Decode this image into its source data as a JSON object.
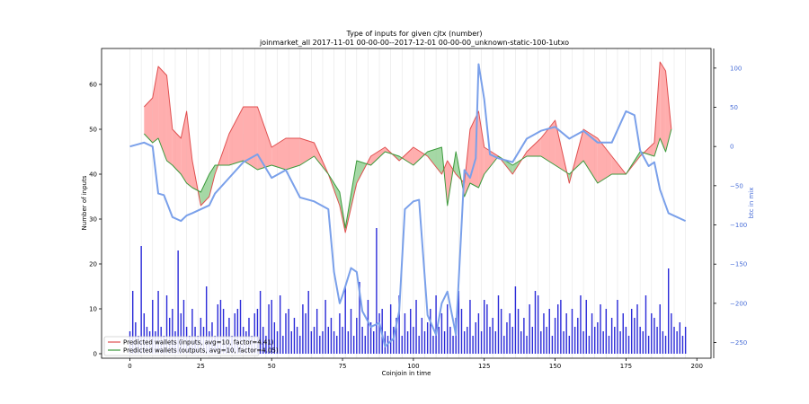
{
  "chart_data": {
    "type": "line",
    "title": "Type of inputs for given cjtx (number)",
    "subtitle": "joinmarket_all 2017-11-01 00-00-00--2017-12-01 00-00-00_unknown-static-100-1utxo",
    "xlabel": "Coinjoin in time",
    "ylabel": "Number of inputs",
    "ylabel_right": "btc in mix",
    "xlim": [
      -10,
      205
    ],
    "ylim": [
      -1,
      68
    ],
    "ylim_right": [
      -270,
      125
    ],
    "xticks": [
      0,
      25,
      50,
      75,
      100,
      125,
      150,
      175,
      200
    ],
    "yticks": [
      0,
      10,
      20,
      30,
      40,
      50,
      60
    ],
    "yticks_right": [
      100,
      50,
      0,
      -50,
      -100,
      -150,
      -200,
      -250
    ],
    "legend_position": "lower-left",
    "series": [
      {
        "name": "Predicted wallets (inputs, avg=10, factor=4.41)",
        "color": "#e05050",
        "x": [
          5,
          8,
          10,
          13,
          15,
          18,
          20,
          22,
          25,
          28,
          30,
          35,
          40,
          45,
          50,
          55,
          60,
          65,
          70,
          74,
          76,
          80,
          85,
          90,
          95,
          100,
          105,
          110,
          112,
          115,
          118,
          120,
          123,
          125,
          130,
          135,
          140,
          145,
          150,
          155,
          160,
          165,
          170,
          175,
          180,
          185,
          187,
          189,
          191
        ],
        "values": [
          55,
          57,
          64,
          62,
          50,
          48,
          54,
          43,
          33,
          35,
          40,
          49,
          55,
          55,
          46,
          48,
          48,
          47,
          40,
          33,
          27,
          38,
          44,
          46,
          43,
          46,
          44,
          40,
          43,
          40,
          38,
          50,
          54,
          46,
          44,
          40,
          45,
          48,
          52,
          38,
          50,
          48,
          44,
          40,
          44,
          47,
          65,
          63,
          50
        ]
      },
      {
        "name": "Predicted wallets (outputs, avg=10, factor=4.05)",
        "color": "#3c9a3c",
        "x": [
          5,
          8,
          10,
          13,
          15,
          18,
          20,
          22,
          25,
          28,
          30,
          35,
          40,
          45,
          50,
          55,
          60,
          65,
          70,
          74,
          76,
          80,
          85,
          90,
          95,
          100,
          105,
          110,
          112,
          115,
          118,
          120,
          123,
          125,
          130,
          135,
          140,
          145,
          150,
          155,
          160,
          165,
          170,
          175,
          180,
          185,
          187,
          189,
          191
        ],
        "values": [
          49,
          47,
          48,
          43,
          42,
          40,
          38,
          37,
          36,
          40,
          42,
          42,
          43,
          41,
          42,
          41,
          42,
          44,
          40,
          36,
          28,
          43,
          42,
          45,
          44,
          42,
          45,
          46,
          33,
          45,
          35,
          38,
          37,
          40,
          44,
          42,
          44,
          44,
          42,
          40,
          43,
          38,
          40,
          40,
          45,
          44,
          48,
          45,
          50
        ]
      },
      {
        "name": "btc in mix",
        "color": "#7aa0ea",
        "axis": "right",
        "x": [
          0,
          2,
          5,
          8,
          10,
          12,
          15,
          18,
          20,
          22,
          25,
          28,
          30,
          35,
          40,
          45,
          50,
          55,
          60,
          65,
          70,
          72,
          74,
          75,
          78,
          80,
          82,
          85,
          88,
          90,
          93,
          95,
          97,
          100,
          102,
          105,
          108,
          110,
          112,
          115,
          118,
          120,
          122,
          123,
          125,
          127,
          130,
          135,
          140,
          145,
          150,
          155,
          160,
          165,
          170,
          175,
          178,
          180,
          183,
          185,
          187,
          190,
          193,
          196
        ],
        "values": [
          0,
          2,
          5,
          0,
          -60,
          -62,
          -90,
          -95,
          -88,
          -85,
          -80,
          -75,
          -60,
          -40,
          -20,
          -10,
          -40,
          -30,
          -65,
          -70,
          -80,
          -160,
          -200,
          -190,
          -155,
          -160,
          -210,
          -230,
          -225,
          -255,
          -245,
          -210,
          -80,
          -70,
          -68,
          -215,
          -240,
          -200,
          -185,
          -240,
          -30,
          -40,
          -15,
          105,
          60,
          -10,
          -15,
          -20,
          10,
          20,
          25,
          10,
          20,
          5,
          5,
          45,
          40,
          -5,
          -25,
          -20,
          -55,
          -85,
          -90,
          -95
        ]
      }
    ],
    "bars": {
      "color": "#2c2cd8",
      "note": "per-coinjoin input counts",
      "x": [
        0,
        1,
        2,
        3,
        4,
        5,
        6,
        7,
        8,
        9,
        10,
        11,
        12,
        13,
        14,
        15,
        16,
        17,
        18,
        19,
        20,
        21,
        22,
        23,
        24,
        25,
        26,
        27,
        28,
        29,
        30,
        31,
        32,
        33,
        34,
        35,
        36,
        37,
        38,
        39,
        40,
        41,
        42,
        43,
        44,
        45,
        46,
        47,
        48,
        49,
        50,
        51,
        52,
        53,
        54,
        55,
        56,
        57,
        58,
        59,
        60,
        61,
        62,
        63,
        64,
        65,
        66,
        67,
        68,
        69,
        70,
        71,
        72,
        73,
        74,
        75,
        76,
        77,
        78,
        79,
        80,
        81,
        82,
        83,
        84,
        85,
        86,
        87,
        88,
        89,
        90,
        91,
        92,
        93,
        94,
        95,
        96,
        97,
        98,
        99,
        100,
        101,
        102,
        103,
        104,
        105,
        106,
        107,
        108,
        109,
        110,
        111,
        112,
        113,
        114,
        115,
        116,
        117,
        118,
        119,
        120,
        121,
        122,
        123,
        124,
        125,
        126,
        127,
        128,
        129,
        130,
        131,
        132,
        133,
        134,
        135,
        136,
        137,
        138,
        139,
        140,
        141,
        142,
        143,
        144,
        145,
        146,
        147,
        148,
        149,
        150,
        151,
        152,
        153,
        154,
        155,
        156,
        157,
        158,
        159,
        160,
        161,
        162,
        163,
        164,
        165,
        166,
        167,
        168,
        169,
        170,
        171,
        172,
        173,
        174,
        175,
        176,
        177,
        178,
        179,
        180,
        181,
        182,
        183,
        184,
        185,
        186,
        187,
        188,
        189,
        190,
        191,
        192,
        193,
        194,
        195,
        196
      ],
      "values": [
        5,
        14,
        7,
        4,
        24,
        9,
        6,
        5,
        12,
        5,
        14,
        6,
        4,
        13,
        8,
        10,
        5,
        23,
        9,
        12,
        6,
        4,
        10,
        6,
        4,
        8,
        6,
        15,
        5,
        7,
        4,
        11,
        12,
        10,
        6,
        8,
        4,
        9,
        10,
        12,
        6,
        5,
        8,
        4,
        9,
        10,
        14,
        6,
        4,
        11,
        12,
        7,
        5,
        13,
        4,
        9,
        10,
        5,
        8,
        6,
        4,
        11,
        9,
        14,
        5,
        6,
        10,
        4,
        5,
        12,
        6,
        8,
        5,
        4,
        9,
        6,
        15,
        5,
        10,
        4,
        8,
        16,
        6,
        4,
        12,
        7,
        5,
        28,
        9,
        10,
        5,
        4,
        11,
        6,
        8,
        13,
        4,
        9,
        5,
        10,
        6,
        12,
        4,
        8,
        5,
        7,
        10,
        4,
        13,
        6,
        9,
        5,
        11,
        6,
        4,
        8,
        14,
        10,
        5,
        6,
        12,
        4,
        7,
        9,
        5,
        12,
        11,
        6,
        8,
        5,
        13,
        10,
        4,
        7,
        9,
        6,
        15,
        10,
        5,
        8,
        4,
        11,
        6,
        14,
        13,
        5,
        9,
        6,
        10,
        4,
        8,
        11,
        12,
        5,
        9,
        4,
        10,
        6,
        8,
        13,
        5,
        12,
        4,
        9,
        6,
        7,
        11,
        5,
        10,
        4,
        8,
        6,
        12,
        5,
        9,
        6,
        4,
        10,
        8,
        11,
        6,
        5,
        13,
        4,
        9,
        8,
        6,
        11,
        5,
        4,
        19,
        9,
        6,
        5,
        7,
        4,
        6
      ]
    },
    "legend": [
      "Predicted wallets (inputs, avg=10, factor=4.41)",
      "Predicted wallets (outputs, avg=10, factor=4.05)"
    ]
  }
}
